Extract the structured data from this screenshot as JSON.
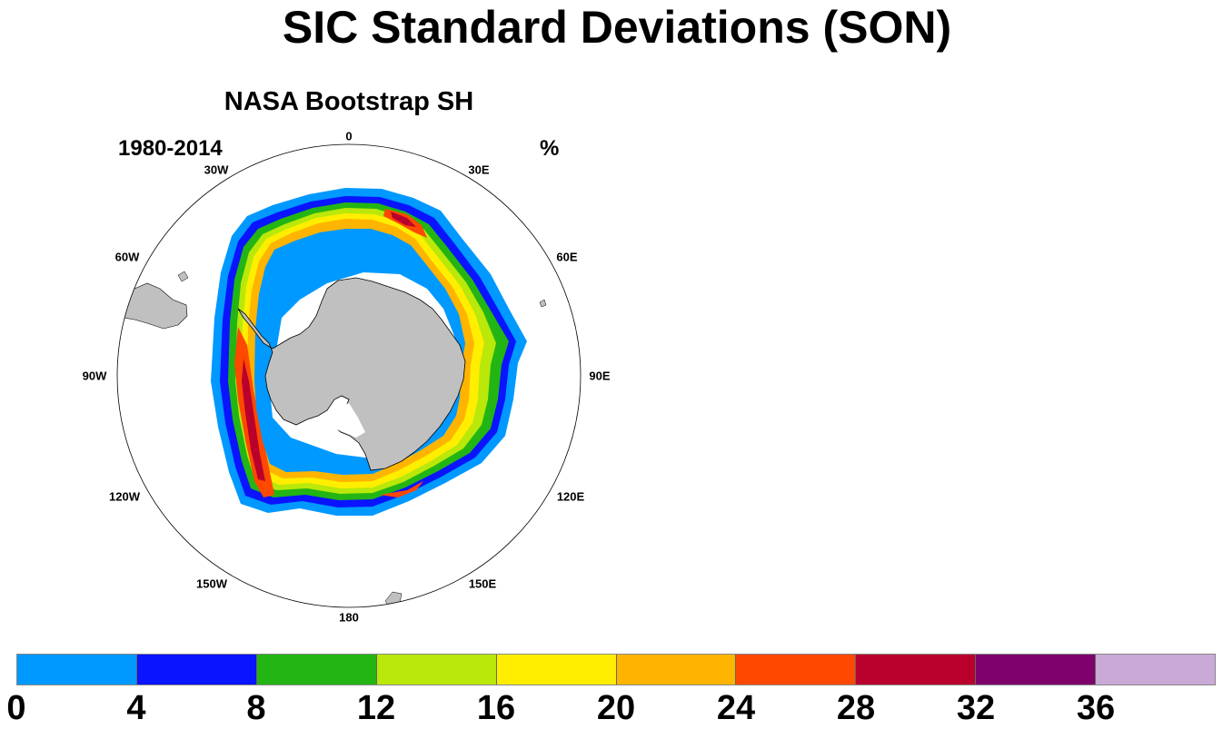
{
  "title": "SIC Standard Deviations (SON)",
  "panel": {
    "title": "NASA Bootstrap SH",
    "period": "1980-2014",
    "units": "%"
  },
  "longitude_labels": [
    "0",
    "30E",
    "60E",
    "90E",
    "120E",
    "150E",
    "180",
    "150W",
    "120W",
    "90W",
    "60W",
    "30W"
  ],
  "colorbar": {
    "colors": [
      "#0099ff",
      "#0a14ff",
      "#22b514",
      "#b9e80a",
      "#ffee00",
      "#ffb400",
      "#ff4800",
      "#b9002d",
      "#7d006b",
      "#c9a9d6"
    ],
    "labels": [
      "0",
      "4",
      "8",
      "12",
      "16",
      "20",
      "24",
      "28",
      "32",
      "36"
    ]
  },
  "map_colors": {
    "land": "#c0c0c0",
    "ocean": "#ffffff",
    "outline": "#000000"
  }
}
